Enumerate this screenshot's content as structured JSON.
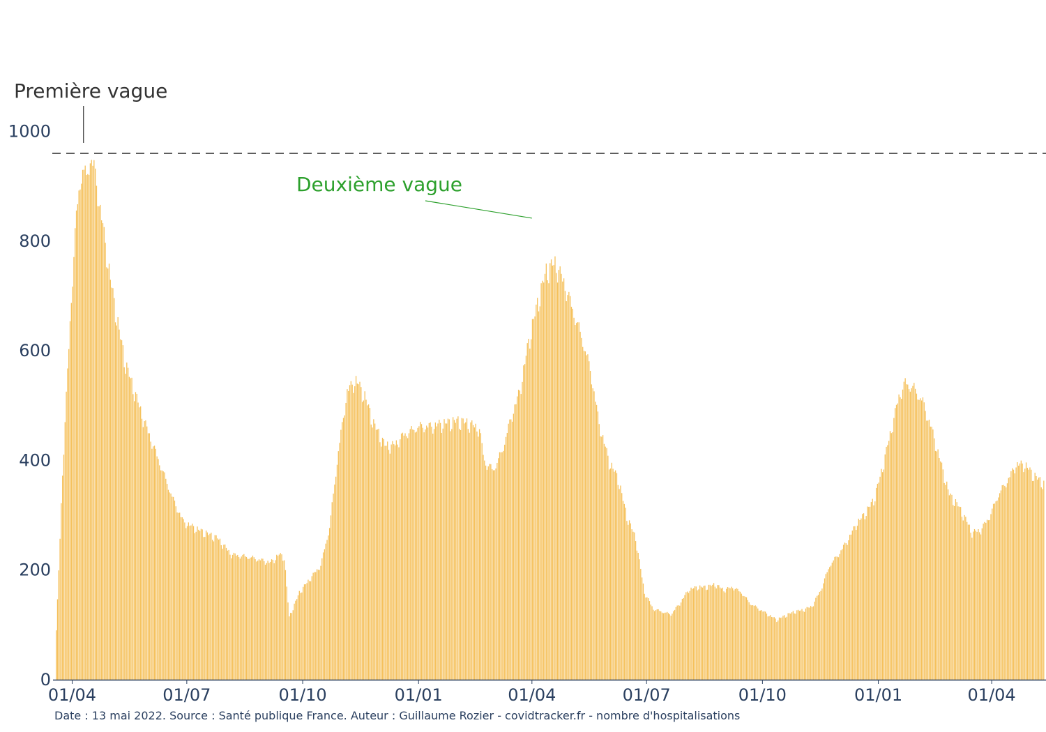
{
  "chart_data": {
    "type": "bar",
    "x_start": "2020-03-19",
    "x_end": "2022-05-12",
    "ylim": [
      0,
      1000
    ],
    "y_ticks": [
      0,
      200,
      400,
      600,
      800,
      1000
    ],
    "x_tick_labels": [
      {
        "date": "2020-04-01",
        "label": "01/04"
      },
      {
        "date": "2020-07-01",
        "label": "01/07"
      },
      {
        "date": "2020-10-01",
        "label": "01/10"
      },
      {
        "date": "2021-01-01",
        "label": "01/01"
      },
      {
        "date": "2021-04-01",
        "label": "01/04"
      },
      {
        "date": "2021-07-01",
        "label": "01/07"
      },
      {
        "date": "2021-10-01",
        "label": "01/10"
      },
      {
        "date": "2022-01-01",
        "label": "01/01"
      },
      {
        "date": "2022-04-01",
        "label": "01/04"
      }
    ],
    "bar_color": "#f5c05a",
    "profile": [
      [
        "2020-03-19",
        90
      ],
      [
        "2020-03-21",
        200
      ],
      [
        "2020-03-24",
        380
      ],
      [
        "2020-03-27",
        520
      ],
      [
        "2020-03-31",
        700
      ],
      [
        "2020-04-03",
        820
      ],
      [
        "2020-04-06",
        900
      ],
      [
        "2020-04-09",
        940
      ],
      [
        "2020-04-12",
        920
      ],
      [
        "2020-04-15",
        960
      ],
      [
        "2020-04-18",
        940
      ],
      [
        "2020-04-22",
        880
      ],
      [
        "2020-04-27",
        800
      ],
      [
        "2020-05-02",
        720
      ],
      [
        "2020-05-08",
        640
      ],
      [
        "2020-05-13",
        580
      ],
      [
        "2020-05-20",
        530
      ],
      [
        "2020-05-27",
        480
      ],
      [
        "2020-06-04",
        430
      ],
      [
        "2020-06-12",
        380
      ],
      [
        "2020-06-20",
        330
      ],
      [
        "2020-06-28",
        290
      ],
      [
        "2020-07-10",
        275
      ],
      [
        "2020-07-25",
        260
      ],
      [
        "2020-08-05",
        230
      ],
      [
        "2020-08-20",
        225
      ],
      [
        "2020-09-05",
        215
      ],
      [
        "2020-09-12",
        230
      ],
      [
        "2020-09-16",
        225
      ],
      [
        "2020-09-20",
        115
      ],
      [
        "2020-09-28",
        160
      ],
      [
        "2020-10-08",
        190
      ],
      [
        "2020-10-15",
        210
      ],
      [
        "2020-10-22",
        280
      ],
      [
        "2020-10-29",
        420
      ],
      [
        "2020-11-05",
        530
      ],
      [
        "2020-11-12",
        550
      ],
      [
        "2020-11-19",
        520
      ],
      [
        "2020-11-26",
        470
      ],
      [
        "2020-12-05",
        430
      ],
      [
        "2020-12-12",
        430
      ],
      [
        "2020-12-20",
        450
      ],
      [
        "2021-01-01",
        465
      ],
      [
        "2021-01-10",
        465
      ],
      [
        "2021-01-20",
        470
      ],
      [
        "2021-02-01",
        475
      ],
      [
        "2021-02-10",
        470
      ],
      [
        "2021-02-18",
        460
      ],
      [
        "2021-02-22",
        400
      ],
      [
        "2021-03-01",
        385
      ],
      [
        "2021-03-08",
        420
      ],
      [
        "2021-03-15",
        480
      ],
      [
        "2021-03-22",
        530
      ],
      [
        "2021-03-29",
        620
      ],
      [
        "2021-04-05",
        690
      ],
      [
        "2021-04-12",
        750
      ],
      [
        "2021-04-19",
        765
      ],
      [
        "2021-04-26",
        730
      ],
      [
        "2021-05-03",
        680
      ],
      [
        "2021-05-10",
        630
      ],
      [
        "2021-05-17",
        570
      ],
      [
        "2021-05-24",
        470
      ],
      [
        "2021-06-01",
        400
      ],
      [
        "2021-06-08",
        370
      ],
      [
        "2021-06-15",
        300
      ],
      [
        "2021-06-22",
        260
      ],
      [
        "2021-06-29",
        160
      ],
      [
        "2021-07-06",
        130
      ],
      [
        "2021-07-13",
        125
      ],
      [
        "2021-07-20",
        120
      ],
      [
        "2021-07-27",
        140
      ],
      [
        "2021-08-03",
        165
      ],
      [
        "2021-08-10",
        170
      ],
      [
        "2021-08-17",
        170
      ],
      [
        "2021-08-24",
        175
      ],
      [
        "2021-08-31",
        165
      ],
      [
        "2021-09-07",
        170
      ],
      [
        "2021-09-14",
        160
      ],
      [
        "2021-09-21",
        140
      ],
      [
        "2021-09-28",
        130
      ],
      [
        "2021-10-05",
        120
      ],
      [
        "2021-10-12",
        110
      ],
      [
        "2021-10-19",
        118
      ],
      [
        "2021-10-26",
        125
      ],
      [
        "2021-11-02",
        128
      ],
      [
        "2021-11-09",
        135
      ],
      [
        "2021-11-16",
        165
      ],
      [
        "2021-11-23",
        210
      ],
      [
        "2021-11-30",
        230
      ],
      [
        "2021-12-07",
        255
      ],
      [
        "2021-12-14",
        285
      ],
      [
        "2021-12-21",
        305
      ],
      [
        "2021-12-28",
        330
      ],
      [
        "2022-01-03",
        380
      ],
      [
        "2022-01-10",
        450
      ],
      [
        "2022-01-17",
        520
      ],
      [
        "2022-01-22",
        545
      ],
      [
        "2022-01-29",
        535
      ],
      [
        "2022-02-05",
        510
      ],
      [
        "2022-02-12",
        460
      ],
      [
        "2022-02-19",
        400
      ],
      [
        "2022-02-26",
        340
      ],
      [
        "2022-03-05",
        320
      ],
      [
        "2022-03-12",
        290
      ],
      [
        "2022-03-16",
        270
      ],
      [
        "2022-03-23",
        275
      ],
      [
        "2022-03-30",
        300
      ],
      [
        "2022-04-06",
        340
      ],
      [
        "2022-04-13",
        365
      ],
      [
        "2022-04-20",
        395
      ],
      [
        "2022-04-27",
        395
      ],
      [
        "2022-05-04",
        375
      ],
      [
        "2022-05-12",
        360
      ]
    ],
    "reference_line": {
      "y": 960,
      "style": "dashed",
      "color": "#333333"
    },
    "annotations": [
      {
        "text": "Première vague",
        "color": "#333333",
        "date": "2020-04-10",
        "value": 960
      },
      {
        "text": "Deuxième vague",
        "color": "#2ca02c",
        "date": "2021-04-01",
        "value": 810
      }
    ]
  },
  "footer": {
    "source_text": "Date : 13 mai 2022. Source : Santé publique France. Auteur : Guillaume Rozier - covidtracker.fr - nombre d'hospitalisations"
  }
}
